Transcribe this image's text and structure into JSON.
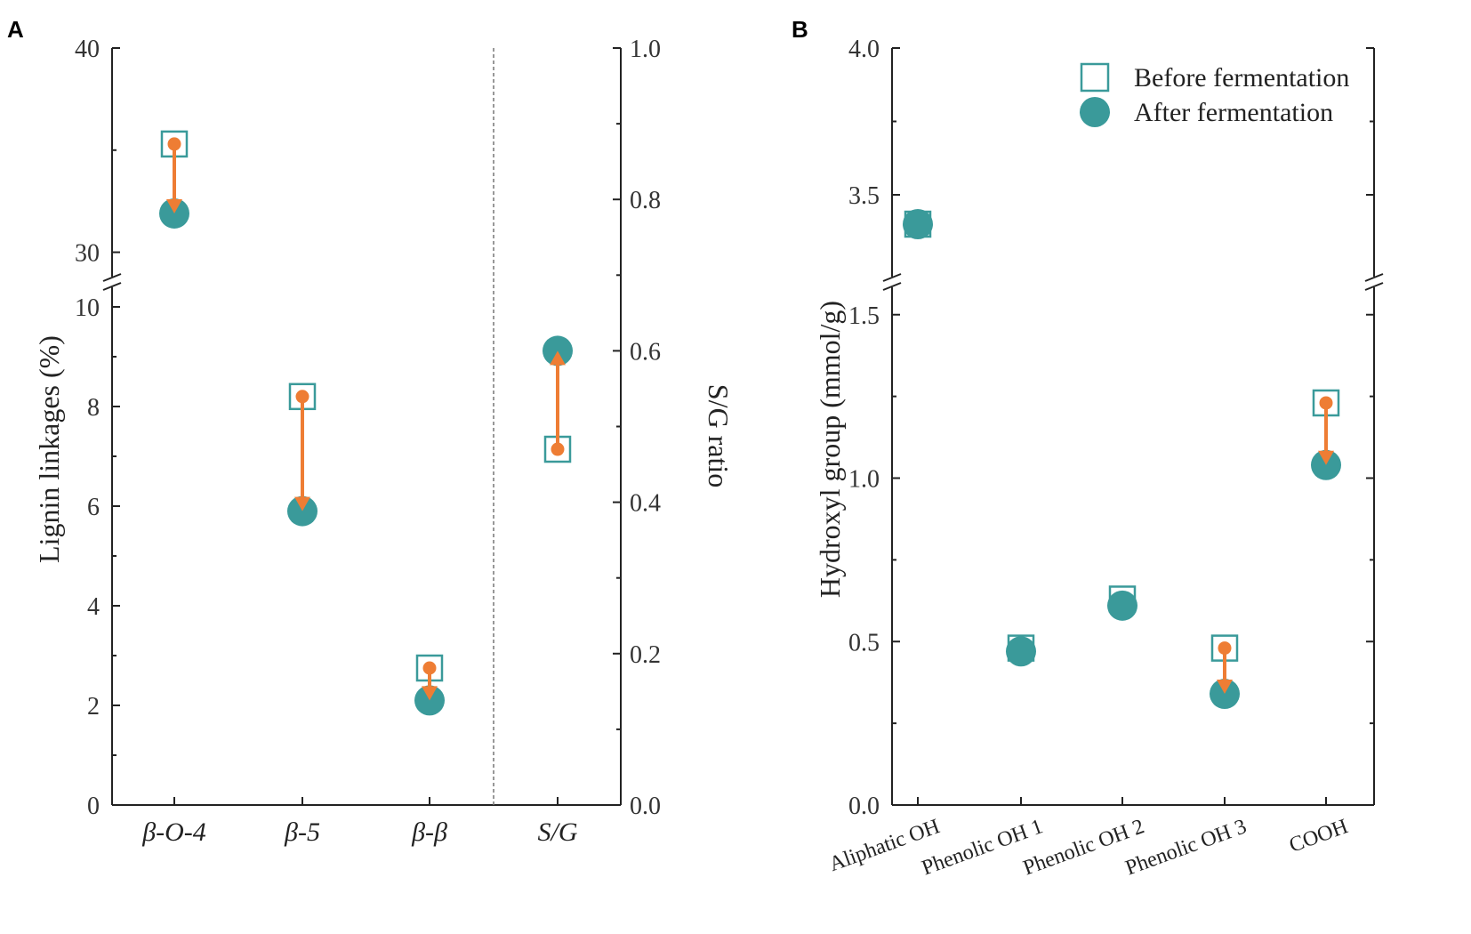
{
  "colors": {
    "teal": "#3a9a9a",
    "orange": "#ee7d34",
    "axis": "#222222"
  },
  "chart_data": [
    {
      "panel": "A",
      "type": "scatter",
      "categories": [
        "β-O-4",
        "β-5",
        "β-β",
        "S/G"
      ],
      "ylabel": "Lignin linkages (%)",
      "y2label": "S/G ratio",
      "ylim_lower": [
        0,
        10.5
      ],
      "ylim_upper": [
        28.5,
        40
      ],
      "y_break": true,
      "yticks_lower": [
        "0",
        "2",
        "4",
        "6",
        "8",
        "10"
      ],
      "yticks_upper": [
        "30",
        "40"
      ],
      "y2lim": [
        0,
        1.0
      ],
      "y2ticks": [
        "0.0",
        "0.2",
        "0.4",
        "0.6",
        "0.8",
        "1.0"
      ],
      "series": [
        {
          "name": "Before fermentation",
          "marker": "open-square",
          "values": [
            35.3,
            8.2,
            2.75
          ],
          "sg_ratio": 0.47
        },
        {
          "name": "After fermentation",
          "marker": "filled-circle",
          "values": [
            31.9,
            5.9,
            2.1
          ],
          "sg_ratio": 0.6
        }
      ],
      "dashed_separator_before": "S/G"
    },
    {
      "panel": "B",
      "type": "scatter",
      "categories": [
        "Aliphatic OH",
        "Phenolic OH 1",
        "Phenolic OH 2",
        "Phenolic OH 3",
        "COOH"
      ],
      "ylabel": "Hydroxyl group (mmol/g)",
      "ylim_lower": [
        0,
        1.6
      ],
      "ylim_upper": [
        3.2,
        4.0
      ],
      "y_break": true,
      "yticks_lower": [
        "0.0",
        "0.5",
        "1.0",
        "1.5"
      ],
      "yticks_upper": [
        "3.5",
        "4.0"
      ],
      "legend": {
        "position": "top-right",
        "entries": [
          "Before fermentation",
          "After fermentation"
        ]
      },
      "series": [
        {
          "name": "Before fermentation",
          "marker": "open-square",
          "values": [
            3.4,
            0.48,
            0.63,
            0.48,
            1.23
          ]
        },
        {
          "name": "After fermentation",
          "marker": "filled-circle",
          "values": [
            3.4,
            0.47,
            0.61,
            0.34,
            1.04
          ]
        }
      ]
    }
  ]
}
